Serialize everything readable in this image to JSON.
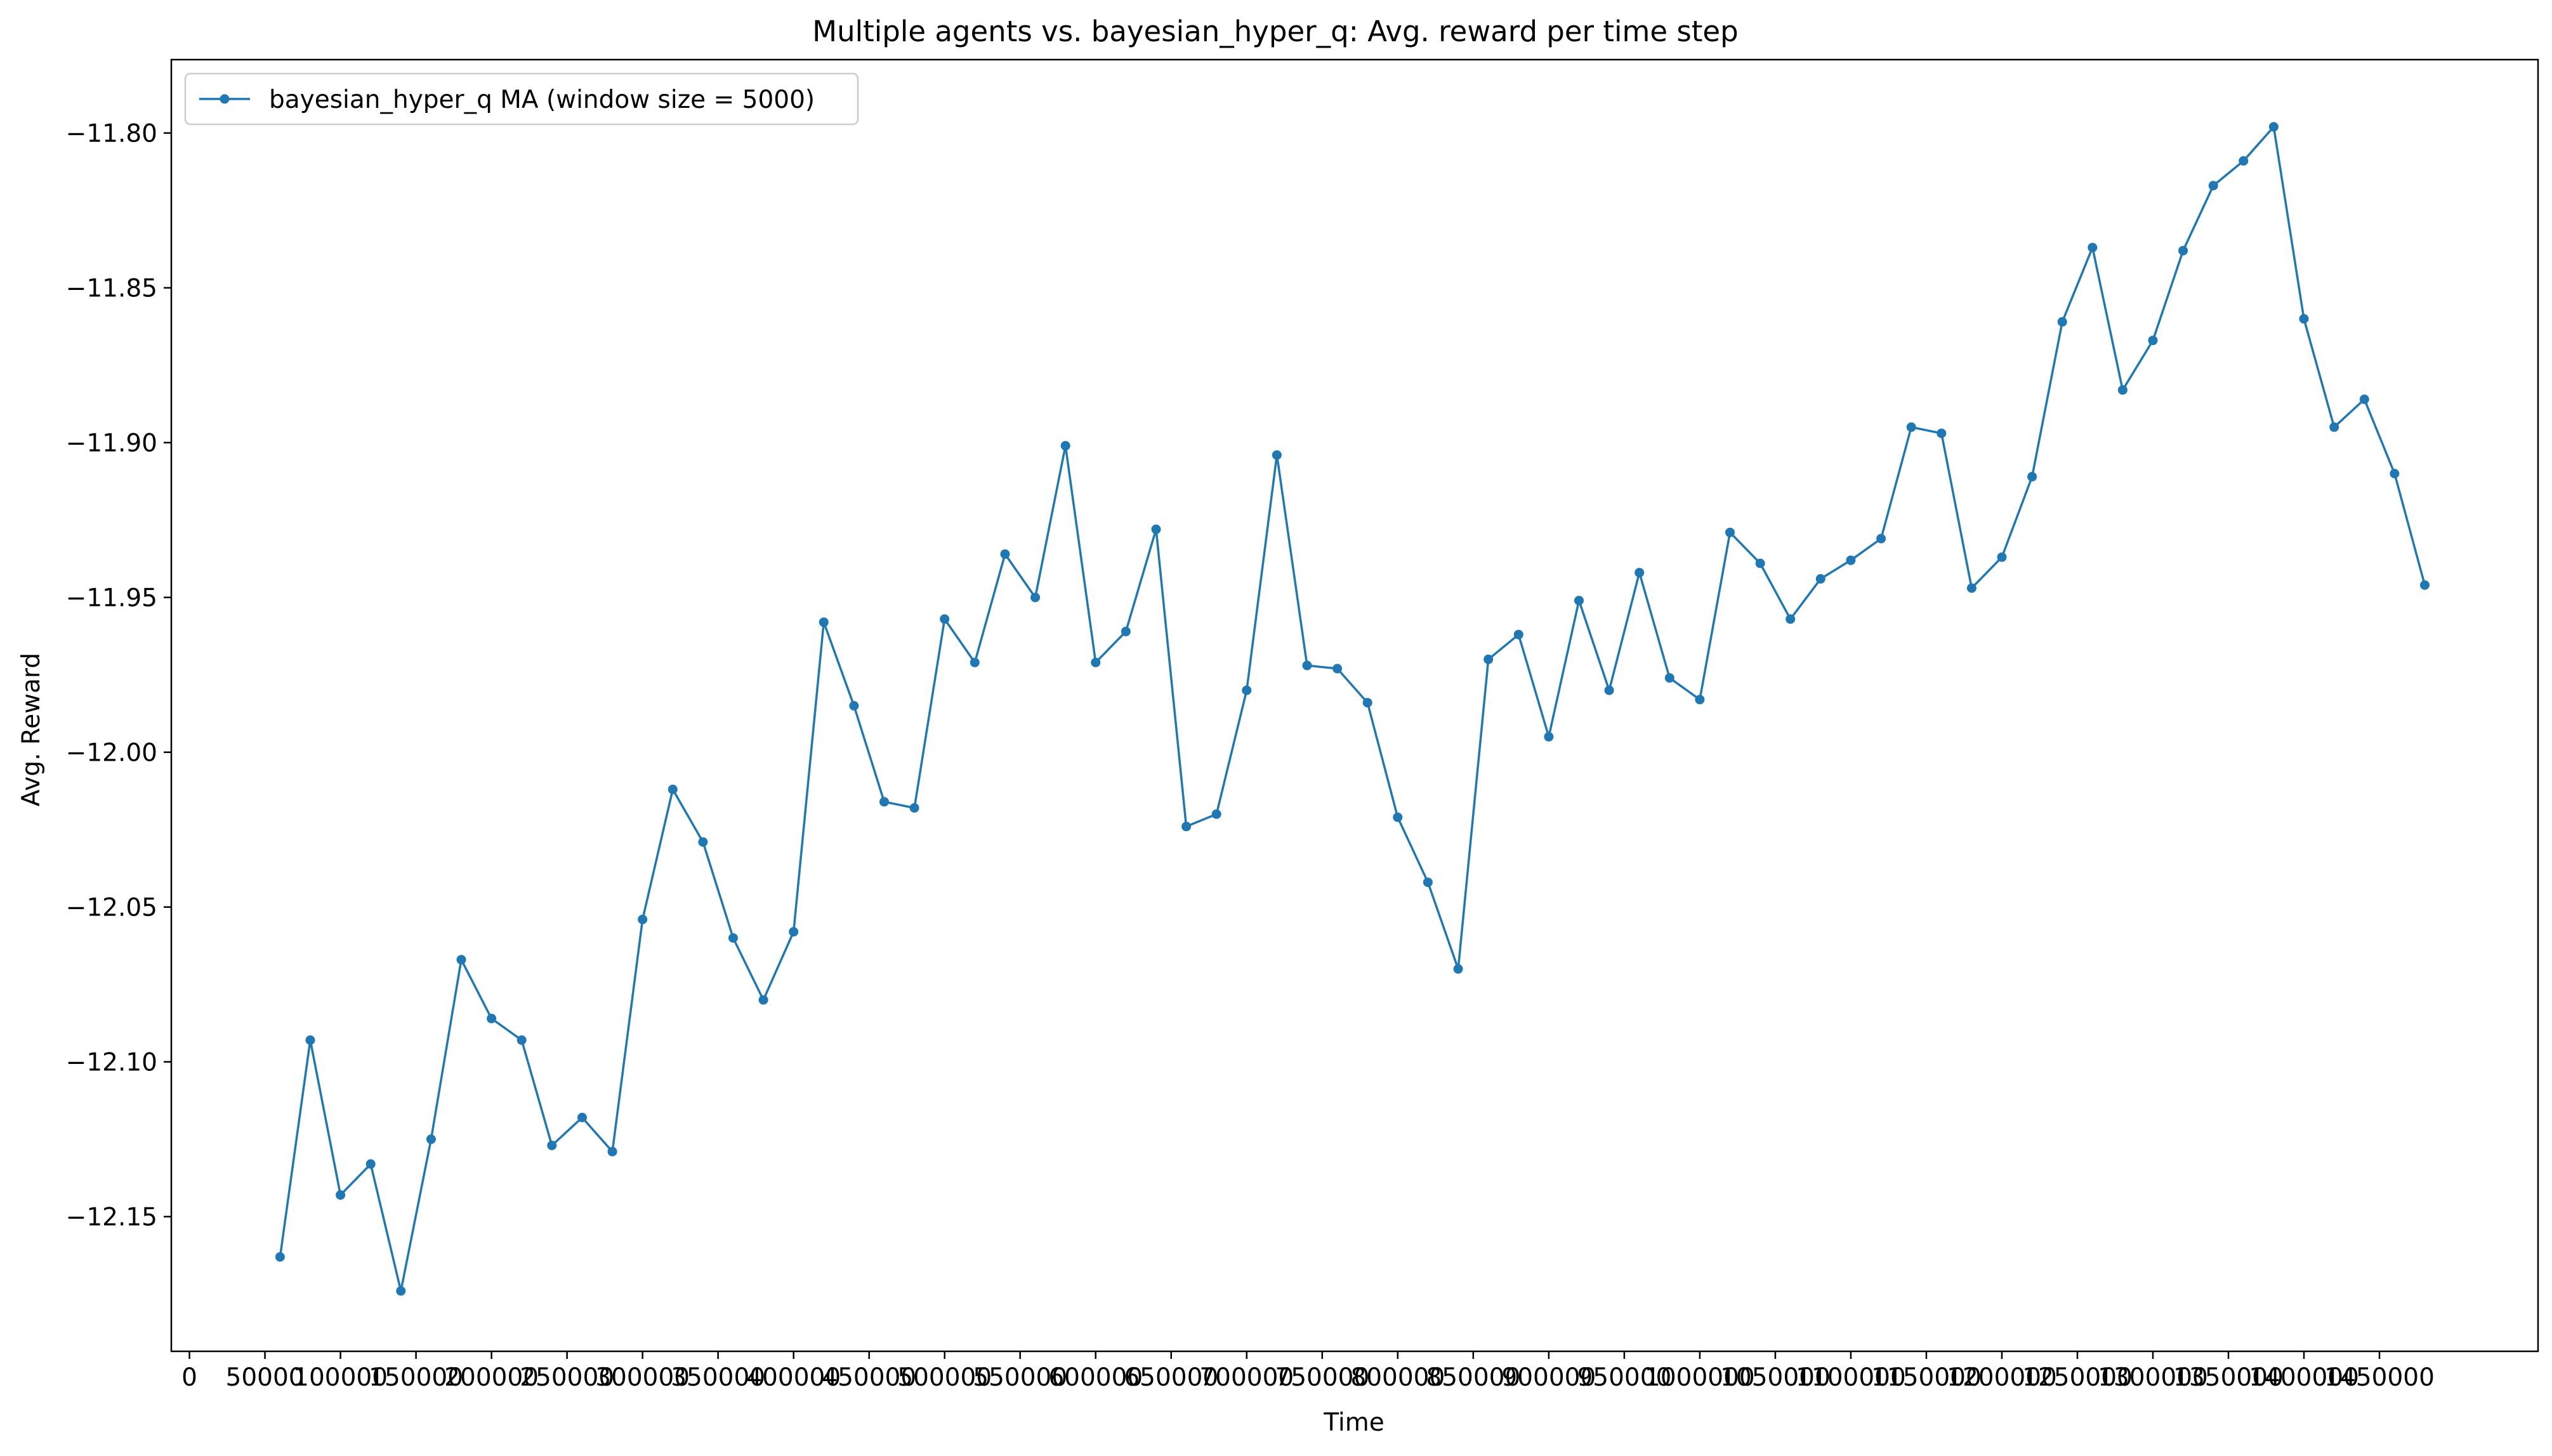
{
  "chart_data": {
    "type": "line",
    "title": "Multiple agents vs. bayesian_hyper_q: Avg. reward per time step",
    "xlabel": "Time",
    "ylabel": "Avg. Reward",
    "xlim": [
      -12000,
      1555000
    ],
    "ylim": [
      -12.1935,
      -11.7763
    ],
    "x_ticks": [
      0,
      50000,
      100000,
      150000,
      200000,
      250000,
      300000,
      350000,
      400000,
      450000,
      500000,
      550000,
      600000,
      650000,
      700000,
      750000,
      800000,
      850000,
      900000,
      950000,
      1000000,
      1050000,
      1100000,
      1150000,
      1200000,
      1250000,
      1300000,
      1350000,
      1400000,
      1450000
    ],
    "x_tick_labels": [
      "0",
      "50000",
      "100000",
      "150000",
      "200000",
      "250000",
      "300000",
      "350000",
      "400000",
      "450000",
      "500000",
      "550000",
      "600000",
      "650000",
      "700000",
      "750000",
      "800000",
      "850000",
      "900000",
      "950000",
      "1000000",
      "1050000",
      "1100000",
      "1150000",
      "1200000",
      "1250000",
      "1300000",
      "1350000",
      "1400000",
      "1450000"
    ],
    "y_ticks": [
      -12.15,
      -12.1,
      -12.05,
      -12.0,
      -11.95,
      -11.9,
      -11.85,
      -11.8
    ],
    "y_tick_labels": [
      "−12.15",
      "−12.10",
      "−12.05",
      "−12.00",
      "−11.95",
      "−11.90",
      "−11.85",
      "−11.80"
    ],
    "grid": false,
    "legend_position": "top-left",
    "series": [
      {
        "name": "bayesian_hyper_q MA (window size = 5000)",
        "color": "#1f77b4",
        "marker": "circle",
        "x": [
          60000,
          80000,
          100000,
          120000,
          140000,
          160000,
          180000,
          200000,
          220000,
          240000,
          260000,
          280000,
          300000,
          320000,
          340000,
          360000,
          380000,
          400000,
          420000,
          440000,
          460000,
          480000,
          500000,
          520000,
          540000,
          560000,
          580000,
          600000,
          620000,
          640000,
          660000,
          680000,
          700000,
          720000,
          740000,
          760000,
          780000,
          800000,
          820000,
          840000,
          860000,
          880000,
          900000,
          920000,
          940000,
          960000,
          980000,
          1000000,
          1020000,
          1040000,
          1060000,
          1080000,
          1100000,
          1120000,
          1140000,
          1160000,
          1180000,
          1200000,
          1220000,
          1240000,
          1260000,
          1280000,
          1300000,
          1320000,
          1340000,
          1360000,
          1380000,
          1400000,
          1420000,
          1440000,
          1460000,
          1480000
        ],
        "y": [
          -12.163,
          -12.093,
          -12.143,
          -12.133,
          -12.174,
          -12.125,
          -12.067,
          -12.086,
          -12.093,
          -12.127,
          -12.118,
          -12.129,
          -12.054,
          -12.012,
          -12.029,
          -12.06,
          -12.08,
          -12.058,
          -11.958,
          -11.985,
          -12.016,
          -12.018,
          -11.957,
          -11.971,
          -11.936,
          -11.95,
          -11.901,
          -11.971,
          -11.961,
          -11.928,
          -12.024,
          -12.02,
          -11.98,
          -11.904,
          -11.972,
          -11.973,
          -11.984,
          -12.021,
          -12.042,
          -12.07,
          -11.97,
          -11.962,
          -11.995,
          -11.951,
          -11.98,
          -11.942,
          -11.976,
          -11.983,
          -11.929,
          -11.939,
          -11.957,
          -11.944,
          -11.938,
          -11.931,
          -11.895,
          -11.897,
          -11.947,
          -11.937,
          -11.911,
          -11.861,
          -11.837,
          -11.883,
          -11.867,
          -11.838,
          -11.817,
          -11.809,
          -11.798,
          -11.86,
          -11.895,
          -11.886,
          -11.91,
          -11.946
        ]
      }
    ]
  }
}
